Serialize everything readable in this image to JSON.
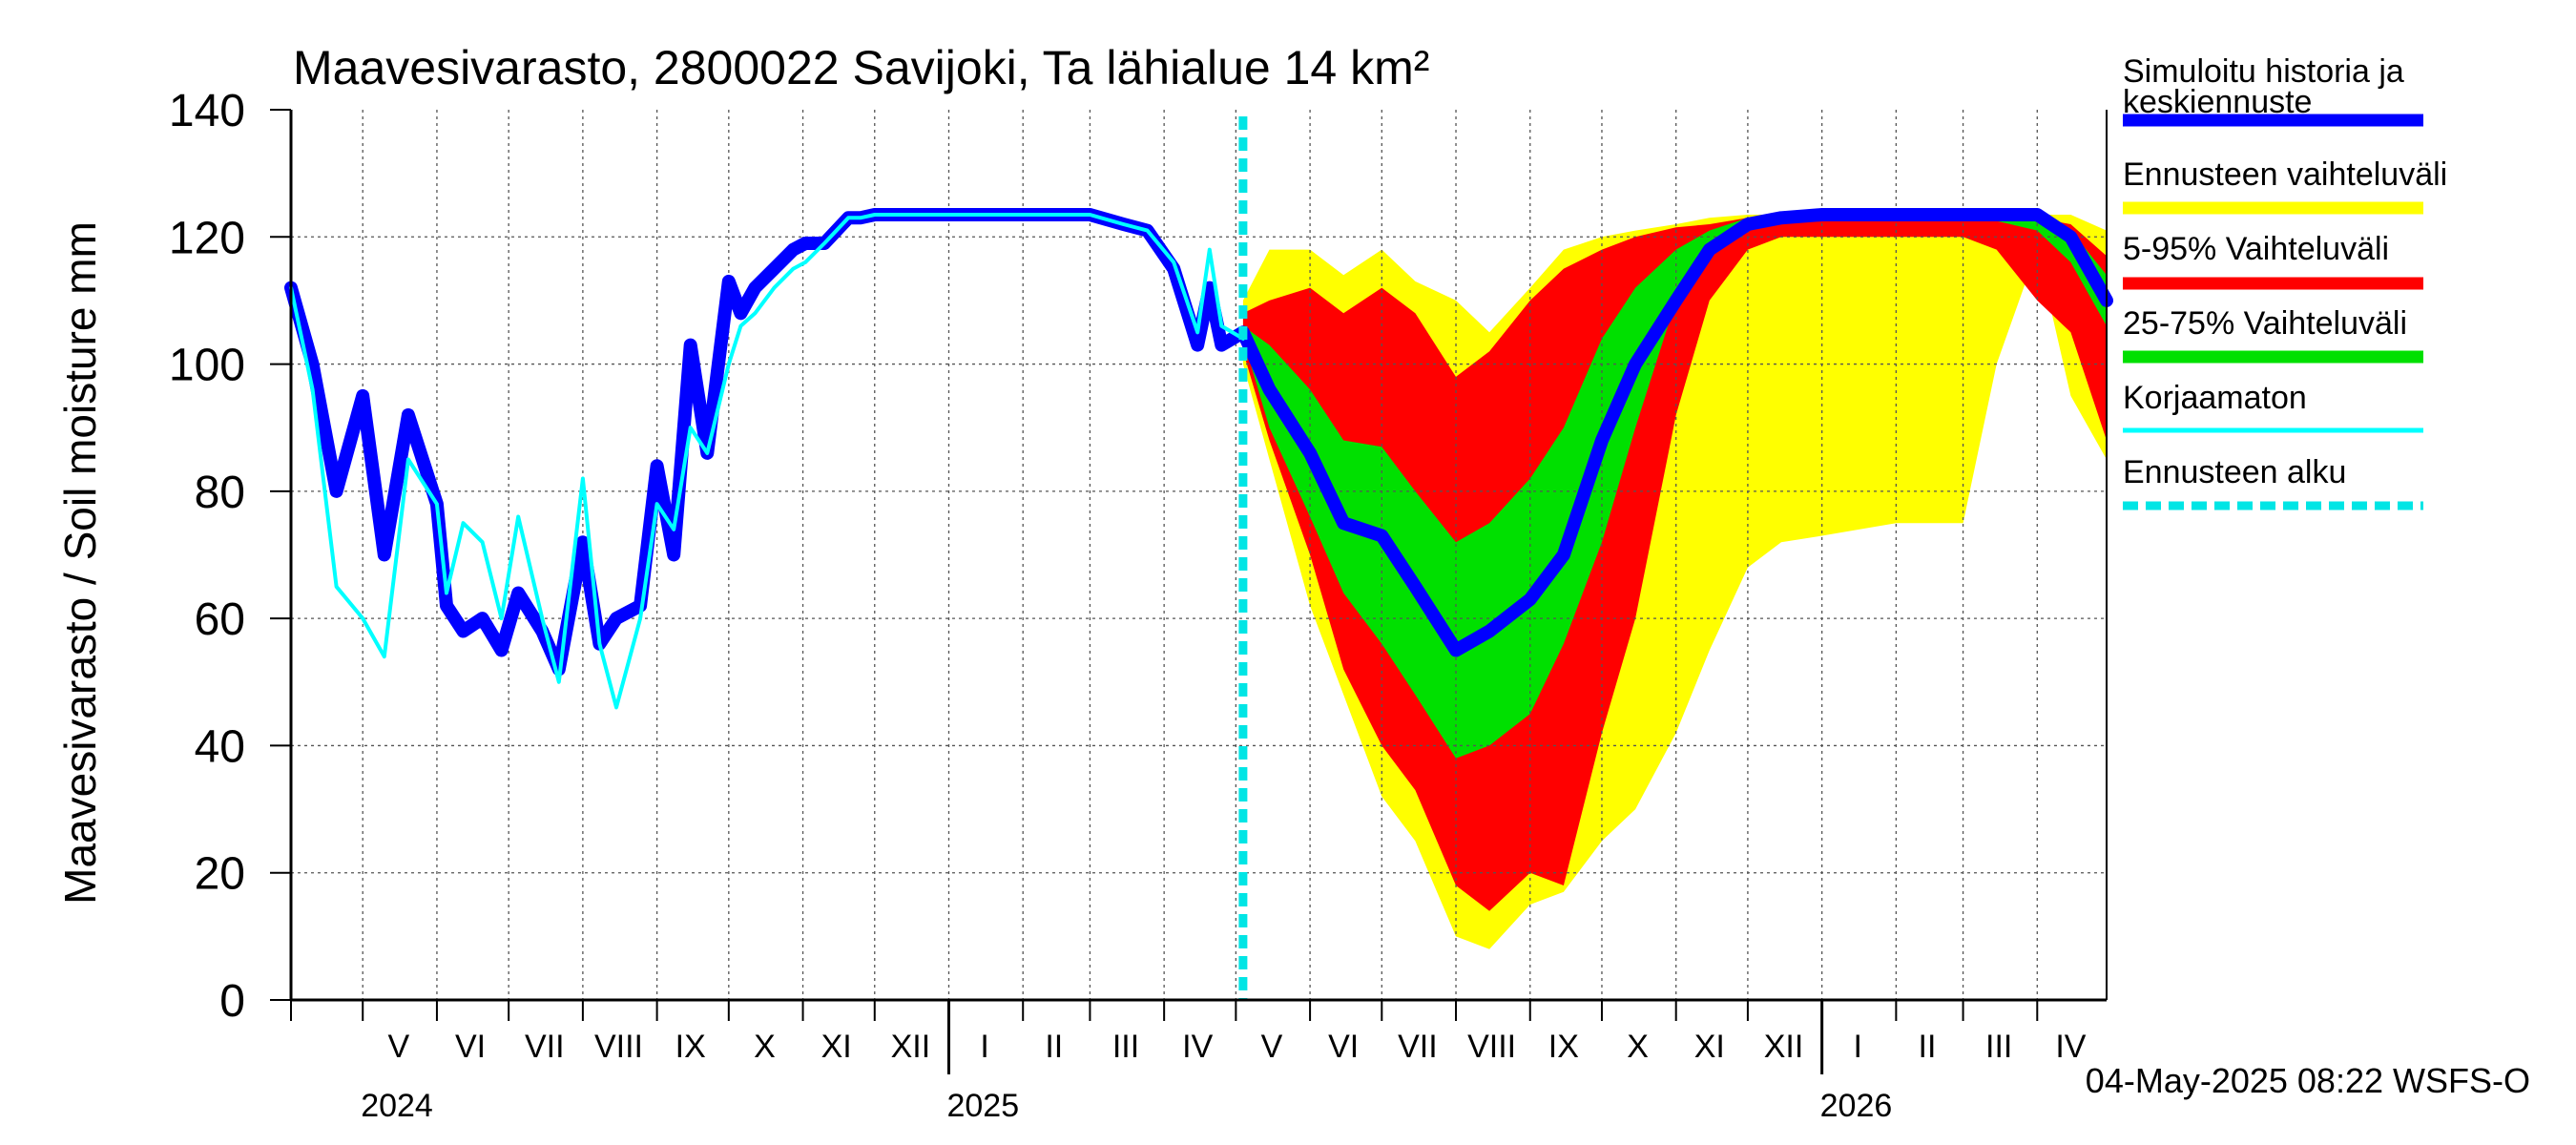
{
  "chart_data": {
    "type": "area",
    "title": "Maavesivarasto, 2800022 Savijoki, Ta lähialue 14 km²",
    "ylabel": "Maavesivarasto / Soil moisture   mm",
    "xlabel": "",
    "ylim": [
      0,
      140
    ],
    "yticks": [
      0,
      20,
      40,
      60,
      80,
      100,
      120,
      140
    ],
    "xlim": [
      "2024-04-01",
      "2026-04-30"
    ],
    "grid": true,
    "legend_position": "right",
    "month_labels": [
      {
        "label": "V",
        "date": "2024-05-16"
      },
      {
        "label": "VI",
        "date": "2024-06-15"
      },
      {
        "label": "VII",
        "date": "2024-07-16"
      },
      {
        "label": "VIII",
        "date": "2024-08-16"
      },
      {
        "label": "IX",
        "date": "2024-09-15"
      },
      {
        "label": "X",
        "date": "2024-10-16"
      },
      {
        "label": "XI",
        "date": "2024-11-15"
      },
      {
        "label": "XII",
        "date": "2024-12-16"
      },
      {
        "label": "I",
        "date": "2025-01-16"
      },
      {
        "label": "II",
        "date": "2025-02-14"
      },
      {
        "label": "III",
        "date": "2025-03-16"
      },
      {
        "label": "IV",
        "date": "2025-04-15"
      },
      {
        "label": "V",
        "date": "2025-05-16"
      },
      {
        "label": "VI",
        "date": "2025-06-15"
      },
      {
        "label": "VII",
        "date": "2025-07-16"
      },
      {
        "label": "VIII",
        "date": "2025-08-16"
      },
      {
        "label": "IX",
        "date": "2025-09-15"
      },
      {
        "label": "X",
        "date": "2025-10-16"
      },
      {
        "label": "XI",
        "date": "2025-11-15"
      },
      {
        "label": "XII",
        "date": "2025-12-16"
      },
      {
        "label": "I",
        "date": "2026-01-16"
      },
      {
        "label": "II",
        "date": "2026-02-14"
      },
      {
        "label": "III",
        "date": "2026-03-16"
      },
      {
        "label": "IV",
        "date": "2026-04-15"
      }
    ],
    "year_labels": [
      {
        "label": "2024",
        "date": "2024-05-01"
      },
      {
        "label": "2025",
        "date": "2025-01-01"
      },
      {
        "label": "2026",
        "date": "2026-01-01"
      }
    ],
    "forecast_start": "2025-05-04",
    "legend": [
      {
        "label": "Simuloitu historia ja keskiennuste",
        "color": "#0000ff",
        "style": "thick"
      },
      {
        "label": "Ennusteen vaihteluväli",
        "color": "#ffff00",
        "style": "thick"
      },
      {
        "label": "5-95% Vaihteluväli",
        "color": "#ff0000",
        "style": "thick"
      },
      {
        "label": "25-75% Vaihteluväli",
        "color": "#00e000",
        "style": "thick"
      },
      {
        "label": "Korjaamaton",
        "color": "#00ffff",
        "style": "thin"
      },
      {
        "label": "Ennusteen alku",
        "color": "#00e5e5",
        "style": "dashed"
      }
    ],
    "series": [
      {
        "name": "Simuloitu historia ja keskiennuste",
        "color": "#0000ff",
        "x": [
          "2024-04-01",
          "2024-04-10",
          "2024-04-20",
          "2024-05-01",
          "2024-05-10",
          "2024-05-20",
          "2024-06-01",
          "2024-06-05",
          "2024-06-12",
          "2024-06-20",
          "2024-06-28",
          "2024-07-05",
          "2024-07-15",
          "2024-07-22",
          "2024-08-01",
          "2024-08-08",
          "2024-08-15",
          "2024-08-25",
          "2024-09-01",
          "2024-09-08",
          "2024-09-15",
          "2024-09-22",
          "2024-10-01",
          "2024-10-06",
          "2024-10-12",
          "2024-10-20",
          "2024-10-28",
          "2024-11-02",
          "2024-11-10",
          "2024-11-20",
          "2024-11-25",
          "2024-12-01",
          "2024-12-15",
          "2025-01-01",
          "2025-01-15",
          "2025-02-01",
          "2025-02-15",
          "2025-03-01",
          "2025-03-15",
          "2025-03-25",
          "2025-04-05",
          "2025-04-15",
          "2025-04-20",
          "2025-04-25",
          "2025-05-04",
          "2025-05-15",
          "2025-06-01",
          "2025-06-15",
          "2025-07-01",
          "2025-07-15",
          "2025-08-01",
          "2025-08-15",
          "2025-09-01",
          "2025-09-15",
          "2025-10-01",
          "2025-10-15",
          "2025-11-01",
          "2025-11-15",
          "2025-12-01",
          "2025-12-15",
          "2026-01-01",
          "2026-02-01",
          "2026-03-01",
          "2026-03-15",
          "2026-04-01",
          "2026-04-15",
          "2026-04-30"
        ],
        "values": [
          112,
          100,
          80,
          95,
          70,
          92,
          78,
          62,
          58,
          60,
          55,
          64,
          58,
          52,
          72,
          56,
          60,
          62,
          84,
          70,
          103,
          86,
          113,
          108,
          112,
          115,
          118,
          119,
          119,
          123,
          123,
          123.5,
          123.5,
          123.5,
          123.5,
          123.5,
          123.5,
          123.5,
          122,
          121,
          115,
          103,
          112,
          103,
          105,
          96,
          86,
          75,
          73,
          65,
          55,
          58,
          63,
          70,
          88,
          100,
          110,
          118,
          122,
          123,
          123.5,
          123.5,
          123.5,
          123.5,
          123.5,
          120,
          110
        ]
      },
      {
        "name": "Korjaamaton",
        "color": "#00ffff",
        "x": [
          "2024-04-01",
          "2024-04-10",
          "2024-04-20",
          "2024-05-01",
          "2024-05-10",
          "2024-05-20",
          "2024-06-01",
          "2024-06-05",
          "2024-06-12",
          "2024-06-20",
          "2024-06-28",
          "2024-07-05",
          "2024-07-15",
          "2024-07-22",
          "2024-08-01",
          "2024-08-08",
          "2024-08-15",
          "2024-08-25",
          "2024-09-01",
          "2024-09-08",
          "2024-09-15",
          "2024-09-22",
          "2024-10-01",
          "2024-10-06",
          "2024-10-12",
          "2024-10-20",
          "2024-10-28",
          "2024-11-02",
          "2024-11-10",
          "2024-11-20",
          "2024-11-25",
          "2024-12-01",
          "2024-12-15",
          "2025-01-01",
          "2025-01-15",
          "2025-02-01",
          "2025-02-15",
          "2025-03-01",
          "2025-03-15",
          "2025-03-25",
          "2025-04-05",
          "2025-04-15",
          "2025-04-20",
          "2025-04-25",
          "2025-05-04"
        ],
        "values": [
          112,
          96,
          65,
          60,
          54,
          85,
          78,
          64,
          75,
          72,
          60,
          76,
          60,
          50,
          82,
          56,
          46,
          60,
          78,
          74,
          90,
          86,
          100,
          106,
          108,
          112,
          115,
          116,
          119,
          123,
          123,
          123.5,
          123.5,
          123.5,
          123.5,
          123.5,
          123.5,
          123.5,
          122,
          121,
          116,
          105,
          118,
          106,
          104
        ]
      }
    ],
    "bands": [
      {
        "name": "Ennusteen vaihteluväli",
        "color": "#ffff00",
        "x": [
          "2025-05-04",
          "2025-05-15",
          "2025-06-01",
          "2025-06-15",
          "2025-07-01",
          "2025-07-15",
          "2025-08-01",
          "2025-08-15",
          "2025-09-01",
          "2025-09-15",
          "2025-10-01",
          "2025-10-15",
          "2025-11-01",
          "2025-11-15",
          "2025-12-01",
          "2025-12-15",
          "2026-01-01",
          "2026-02-01",
          "2026-03-01",
          "2026-03-15",
          "2026-04-01",
          "2026-04-15",
          "2026-04-30"
        ],
        "low": [
          100,
          85,
          62,
          48,
          32,
          25,
          10,
          8,
          15,
          17,
          25,
          30,
          42,
          55,
          68,
          72,
          73,
          75,
          75,
          100,
          118,
          95,
          85
        ],
        "high": [
          110,
          118,
          118,
          114,
          118,
          113,
          110,
          105,
          112,
          118,
          120,
          121,
          122,
          123,
          123.5,
          123.5,
          123.5,
          123.5,
          123.5,
          123.5,
          123.5,
          123.5,
          121
        ]
      },
      {
        "name": "5-95% Vaihteluväli",
        "color": "#ff0000",
        "x": [
          "2025-05-04",
          "2025-05-15",
          "2025-06-01",
          "2025-06-15",
          "2025-07-01",
          "2025-07-15",
          "2025-08-01",
          "2025-08-15",
          "2025-09-01",
          "2025-09-15",
          "2025-10-01",
          "2025-10-15",
          "2025-11-01",
          "2025-11-15",
          "2025-12-01",
          "2025-12-15",
          "2026-01-01",
          "2026-02-01",
          "2026-03-01",
          "2026-03-15",
          "2026-04-01",
          "2026-04-15",
          "2026-04-30"
        ],
        "low": [
          102,
          88,
          70,
          52,
          40,
          33,
          18,
          14,
          20,
          18,
          42,
          60,
          92,
          110,
          118,
          120,
          120,
          120,
          120,
          118,
          110,
          105,
          88
        ],
        "high": [
          108,
          110,
          112,
          108,
          112,
          108,
          98,
          102,
          110,
          115,
          118,
          120,
          121.5,
          122,
          123,
          123.5,
          123.5,
          123.5,
          123.5,
          123.5,
          123,
          122,
          117
        ]
      },
      {
        "name": "25-75% Vaihteluväli",
        "color": "#00e000",
        "x": [
          "2025-05-04",
          "2025-05-15",
          "2025-06-01",
          "2025-06-15",
          "2025-07-01",
          "2025-07-15",
          "2025-08-01",
          "2025-08-15",
          "2025-09-01",
          "2025-09-15",
          "2025-10-01",
          "2025-10-15",
          "2025-11-01",
          "2025-11-15",
          "2025-12-01",
          "2025-12-15",
          "2026-01-01",
          "2026-02-01",
          "2026-03-01",
          "2026-03-15",
          "2026-04-01",
          "2026-04-15",
          "2026-04-30"
        ],
        "low": [
          104,
          90,
          76,
          64,
          56,
          48,
          38,
          40,
          45,
          56,
          72,
          90,
          110,
          118,
          121,
          122.5,
          123,
          123,
          123,
          122.5,
          121,
          116,
          106
        ],
        "high": [
          106,
          103,
          96,
          88,
          87,
          80,
          72,
          75,
          82,
          90,
          104,
          112,
          118,
          121,
          123,
          123.5,
          123.5,
          123.5,
          123.5,
          123.5,
          123,
          121,
          114
        ]
      }
    ]
  },
  "footer": {
    "timestamp": "04-May-2025 08:22 WSFS-O"
  }
}
